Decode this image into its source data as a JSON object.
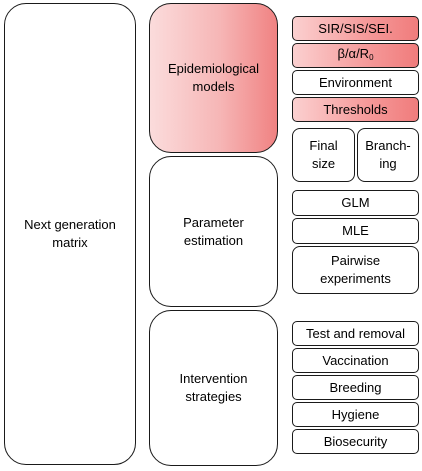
{
  "left": {
    "label": "Next generation\nmatrix"
  },
  "groups": [
    {
      "label": "Epidemiological\nmodels",
      "highlight": true
    },
    {
      "label": "Parameter\nestimation",
      "highlight": false
    },
    {
      "label": "Intervention\nstrategies",
      "highlight": false
    }
  ],
  "epi_items": [
    {
      "label": "SIR/SIS/SEI.",
      "highlight": true
    },
    {
      "label_main": "β/α/R",
      "label_sub": "0",
      "highlight": true
    },
    {
      "label": "Environment",
      "highlight": false
    },
    {
      "label": "Thresholds",
      "highlight": true
    }
  ],
  "epi_split": [
    {
      "label": "Final\nsize"
    },
    {
      "label": "Branch-\ning"
    }
  ],
  "param_items": [
    {
      "label": "GLM"
    },
    {
      "label": "MLE"
    },
    {
      "label": "Pairwise\nexperiments"
    }
  ],
  "intervention_items": [
    {
      "label": "Test and removal"
    },
    {
      "label": "Vaccination"
    },
    {
      "label": "Breeding"
    },
    {
      "label": "Hygiene"
    },
    {
      "label": "Biosecurity"
    }
  ],
  "colors": {
    "highlight": "#f08282",
    "border": "#1a1a1a",
    "background": "#ffffff"
  }
}
